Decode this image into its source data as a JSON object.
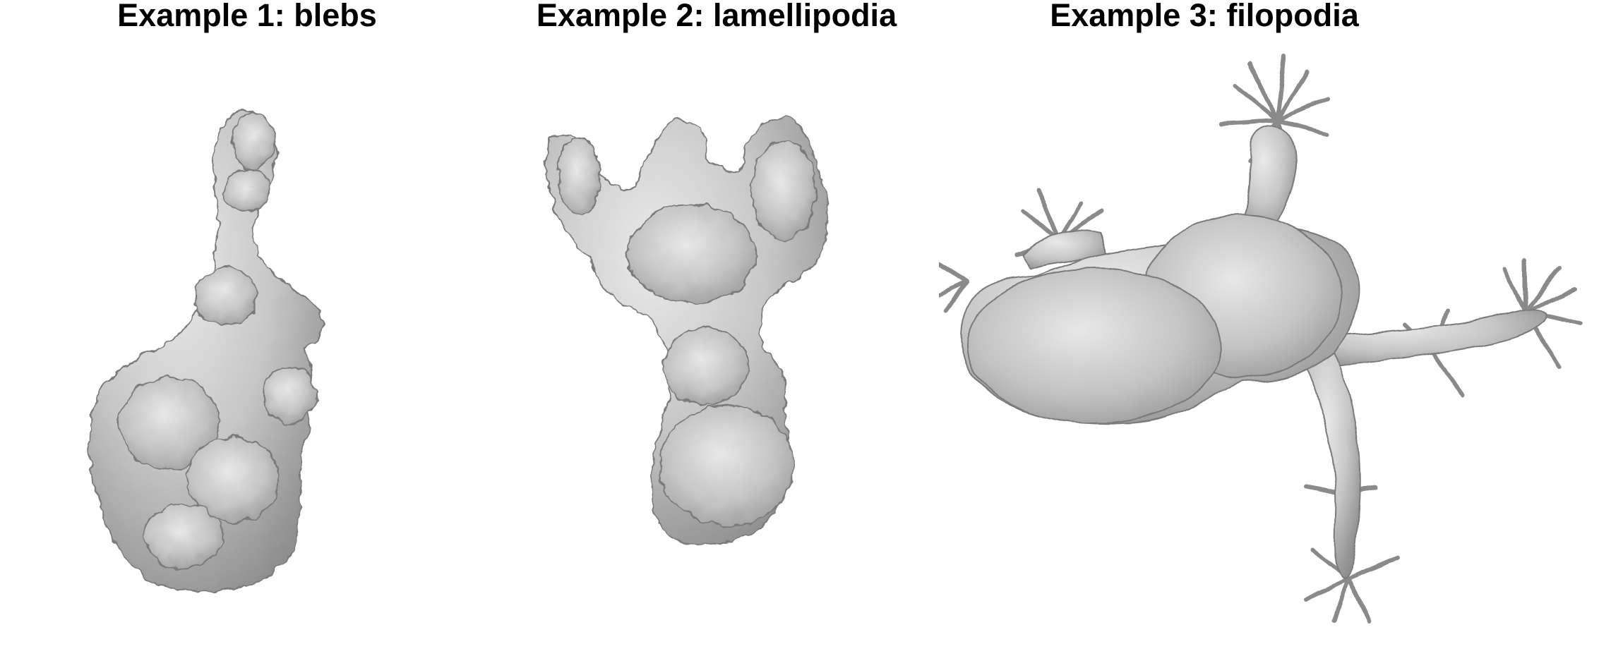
{
  "panels": [
    {
      "title": "Example 1: blebs",
      "subject": "cell-blebs"
    },
    {
      "title": "Example 2: lamellipodia",
      "subject": "cell-lamellipodia"
    },
    {
      "title": "Example 3: filopodia",
      "subject": "cell-filopodia"
    }
  ],
  "colors": {
    "background": "#ffffff",
    "surface_light": "#e4e4e4",
    "surface_mid": "#bdbdbd",
    "surface_dark": "#8e8e8e",
    "outline": "#7a7a7a"
  }
}
